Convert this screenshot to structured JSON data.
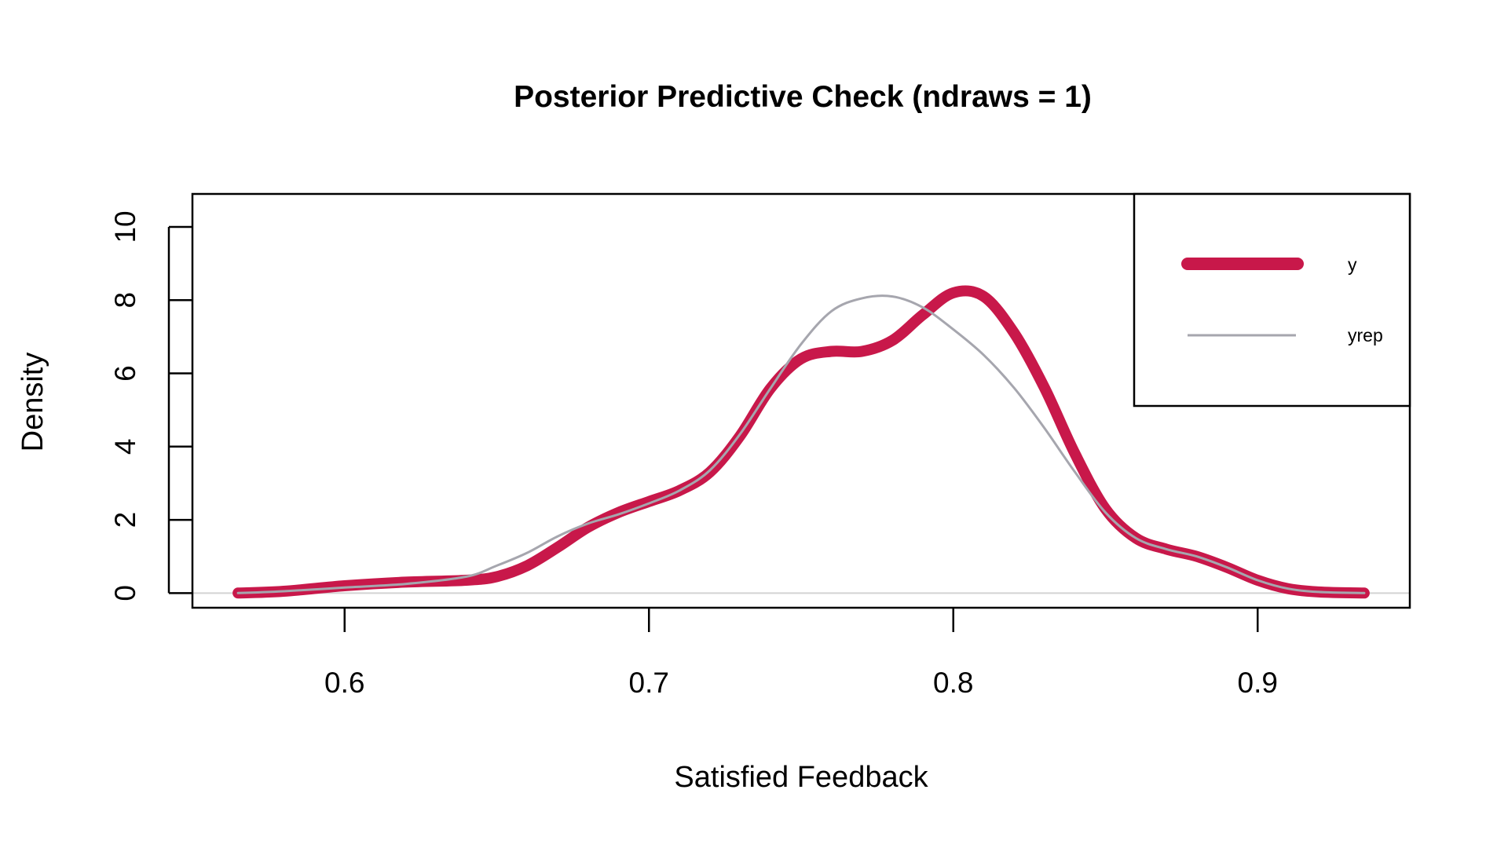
{
  "chart_data": {
    "type": "line",
    "title": "Posterior Predictive Check (ndraws = 1)",
    "xlabel": "Satisfied Feedback",
    "ylabel": "Density",
    "xlim": [
      0.55,
      0.95
    ],
    "ylim": [
      -0.4,
      10.9
    ],
    "xticks": [
      0.6,
      0.7,
      0.8,
      0.9
    ],
    "xtick_labels": [
      "0.6",
      "0.7",
      "0.8",
      "0.9"
    ],
    "yticks": [
      0,
      2,
      4,
      6,
      8,
      10
    ],
    "ytick_labels": [
      "0",
      "2",
      "4",
      "6",
      "8",
      "10"
    ],
    "grid": false,
    "legend_position": "top-right",
    "colors": {
      "y": "#c8184a",
      "yrep": "#a6a6ae",
      "baseline": "#d3d3d3"
    },
    "series": [
      {
        "name": "y",
        "x": [
          0.565,
          0.58,
          0.6,
          0.62,
          0.64,
          0.65,
          0.66,
          0.67,
          0.68,
          0.69,
          0.7,
          0.71,
          0.72,
          0.73,
          0.74,
          0.75,
          0.76,
          0.77,
          0.78,
          0.79,
          0.8,
          0.81,
          0.82,
          0.83,
          0.84,
          0.85,
          0.86,
          0.87,
          0.88,
          0.89,
          0.9,
          0.91,
          0.92,
          0.935
        ],
        "values": [
          0.0,
          0.05,
          0.2,
          0.3,
          0.35,
          0.45,
          0.75,
          1.25,
          1.8,
          2.2,
          2.5,
          2.8,
          3.3,
          4.3,
          5.6,
          6.4,
          6.6,
          6.6,
          6.9,
          7.6,
          8.2,
          8.1,
          7.1,
          5.6,
          3.8,
          2.3,
          1.5,
          1.2,
          1.0,
          0.7,
          0.35,
          0.12,
          0.03,
          0.0
        ]
      },
      {
        "name": "yrep",
        "x": [
          0.565,
          0.58,
          0.6,
          0.62,
          0.64,
          0.65,
          0.66,
          0.67,
          0.68,
          0.69,
          0.7,
          0.71,
          0.72,
          0.73,
          0.74,
          0.75,
          0.76,
          0.77,
          0.78,
          0.79,
          0.8,
          0.81,
          0.82,
          0.83,
          0.84,
          0.85,
          0.86,
          0.87,
          0.88,
          0.89,
          0.9,
          0.91,
          0.92,
          0.935
        ],
        "values": [
          0.0,
          0.05,
          0.15,
          0.25,
          0.45,
          0.75,
          1.1,
          1.55,
          1.9,
          2.15,
          2.45,
          2.8,
          3.35,
          4.35,
          5.6,
          6.8,
          7.7,
          8.05,
          8.1,
          7.8,
          7.2,
          6.5,
          5.6,
          4.5,
          3.3,
          2.2,
          1.5,
          1.2,
          1.0,
          0.7,
          0.35,
          0.12,
          0.03,
          0.0
        ]
      }
    ]
  }
}
